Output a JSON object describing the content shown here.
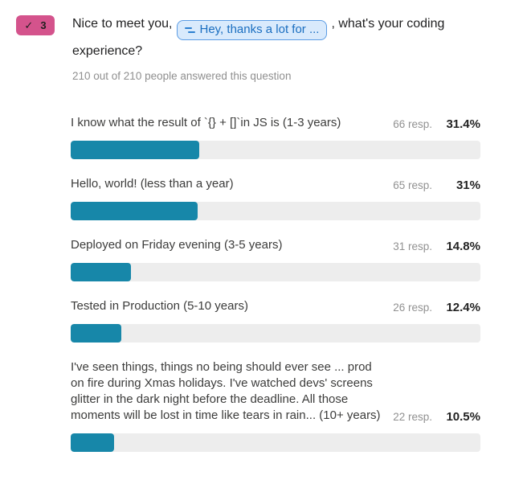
{
  "header": {
    "badge": {
      "check_icon": "✓",
      "number": "3"
    },
    "title_before": "Nice to meet you,",
    "recall_chip_label": "Hey, thanks a lot for ...",
    "title_after": ", what's your coding experience?",
    "answered_summary": "210 out of 210 people answered this question"
  },
  "colors": {
    "bar_fill": "#1787a9",
    "bar_track": "#ededed",
    "badge_bg": "#d4538c",
    "chip_bg": "#d9eafc",
    "chip_border": "#5b9ce4",
    "chip_text": "#1a6ec0",
    "muted_text": "#8f8f8f"
  },
  "rows": [
    {
      "label": "I know what the result of `{} + []`in JS is (1-3 years)",
      "responses": "66 resp.",
      "percent": "31.4%",
      "percent_value": 31.4
    },
    {
      "label": "Hello, world! (less than a year)",
      "responses": "65 resp.",
      "percent": "31%",
      "percent_value": 31
    },
    {
      "label": "Deployed on Friday evening (3-5 years)",
      "responses": "31 resp.",
      "percent": "14.8%",
      "percent_value": 14.8
    },
    {
      "label": "Tested in Production (5-10 years)",
      "responses": "26 resp.",
      "percent": "12.4%",
      "percent_value": 12.4
    },
    {
      "label": "I've seen things, things no being should ever see ... prod on fire during Xmas holidays. I've watched devs' screens glitter in the dark night before the deadline. All those moments will be lost in time like tears in rain... (10+ years)",
      "responses": "22 resp.",
      "percent": "10.5%",
      "percent_value": 10.5
    }
  ],
  "chart_data": {
    "type": "bar",
    "orientation": "horizontal",
    "title": "Nice to meet you, [Hey, thanks a lot for ...], what's your coding experience?",
    "subtitle": "210 out of 210 people answered this question",
    "categories": [
      "I know what the result of `{} + []`in JS is (1-3 years)",
      "Hello, world! (less than a year)",
      "Deployed on Friday evening (3-5 years)",
      "Tested in Production (5-10 years)",
      "I've seen things, things no being should ever see ... prod on fire during Xmas holidays. I've watched devs' screens glitter in the dark night before the deadline. All those moments will be lost in time like tears in rain... (10+ years)"
    ],
    "series": [
      {
        "name": "responses",
        "values": [
          66,
          65,
          31,
          26,
          22
        ]
      },
      {
        "name": "percentage",
        "values": [
          31.4,
          31,
          14.8,
          12.4,
          10.5
        ]
      }
    ],
    "total_responses": 210,
    "xlim": [
      0,
      100
    ],
    "grid": false,
    "legend": "none",
    "bar_color": "#1787a9"
  }
}
